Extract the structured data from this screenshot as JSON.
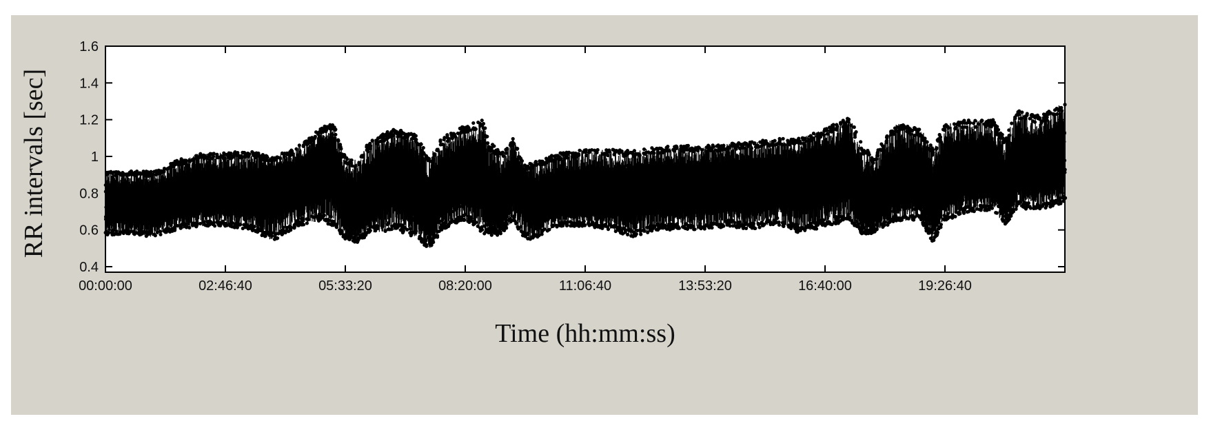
{
  "chart_data": {
    "type": "scatter",
    "xlabel": "Time (hh:mm:ss)",
    "ylabel": "RR intervals [sec]",
    "x_tick_labels": [
      "00:00:00",
      "02:46:40",
      "05:33:20",
      "08:20:00",
      "11:06:40",
      "13:53:20",
      "16:40:00",
      "19:26:40"
    ],
    "x_tick_values_sec": [
      0,
      10000,
      20000,
      30000,
      40000,
      50000,
      60000,
      70000
    ],
    "y_tick_labels": [
      "0.4",
      "0.6",
      "0.8",
      "1",
      "1.2",
      "1.4",
      "1.6"
    ],
    "y_tick_values": [
      0.4,
      0.6,
      0.8,
      1.0,
      1.2,
      1.4,
      1.6
    ],
    "xlim_sec": [
      0,
      80000
    ],
    "ylim": [
      0.37,
      1.6
    ],
    "grid": false,
    "marker_color": "#000000",
    "series": [
      {
        "x_sec": [
          0,
          2000,
          4000,
          6000,
          8000,
          10000,
          12000,
          14000,
          16000,
          18000,
          19000,
          20000,
          21000,
          22000,
          24000,
          26000,
          27000,
          28000,
          30000,
          31500,
          32000,
          33000,
          34000,
          35000,
          36000,
          37000,
          38000,
          40000,
          42000,
          44000,
          46000,
          48000,
          50000,
          52000,
          54000,
          56000,
          58000,
          60000,
          62000,
          63000,
          64000,
          65000,
          66000,
          68000,
          69000,
          70000,
          72000,
          74000,
          75000,
          76000,
          78000,
          80000
        ],
        "y_center": [
          0.74,
          0.75,
          0.73,
          0.78,
          0.8,
          0.8,
          0.8,
          0.82,
          0.85,
          0.92,
          0.96,
          0.72,
          0.7,
          0.8,
          0.9,
          0.8,
          0.7,
          0.8,
          0.9,
          0.9,
          0.72,
          0.7,
          0.88,
          0.8,
          0.72,
          0.78,
          0.78,
          0.8,
          0.8,
          0.82,
          0.82,
          0.82,
          0.83,
          0.84,
          0.84,
          0.86,
          0.86,
          0.9,
          0.92,
          0.73,
          0.72,
          0.82,
          0.87,
          0.86,
          0.72,
          0.88,
          0.92,
          0.92,
          0.78,
          0.96,
          0.95,
          0.98
        ],
        "y_min": [
          0.57,
          0.58,
          0.56,
          0.6,
          0.62,
          0.62,
          0.6,
          0.54,
          0.62,
          0.65,
          0.62,
          0.55,
          0.53,
          0.58,
          0.6,
          0.56,
          0.49,
          0.6,
          0.65,
          0.58,
          0.58,
          0.58,
          0.65,
          0.55,
          0.55,
          0.6,
          0.62,
          0.62,
          0.6,
          0.56,
          0.6,
          0.6,
          0.6,
          0.62,
          0.6,
          0.63,
          0.58,
          0.62,
          0.65,
          0.58,
          0.58,
          0.62,
          0.65,
          0.65,
          0.53,
          0.65,
          0.7,
          0.7,
          0.62,
          0.72,
          0.7,
          0.75
        ],
        "y_max": [
          0.92,
          0.92,
          0.92,
          0.98,
          1.02,
          1.02,
          1.03,
          1.0,
          1.05,
          1.16,
          1.18,
          1.0,
          0.98,
          1.08,
          1.15,
          1.12,
          1.0,
          1.1,
          1.17,
          1.2,
          1.08,
          1.02,
          1.1,
          0.95,
          0.98,
          1.0,
          1.02,
          1.04,
          1.04,
          1.03,
          1.05,
          1.06,
          1.06,
          1.07,
          1.08,
          1.1,
          1.1,
          1.15,
          1.22,
          1.08,
          1.0,
          1.1,
          1.18,
          1.15,
          1.05,
          1.18,
          1.2,
          1.2,
          1.1,
          1.25,
          1.22,
          1.3
        ]
      }
    ]
  }
}
